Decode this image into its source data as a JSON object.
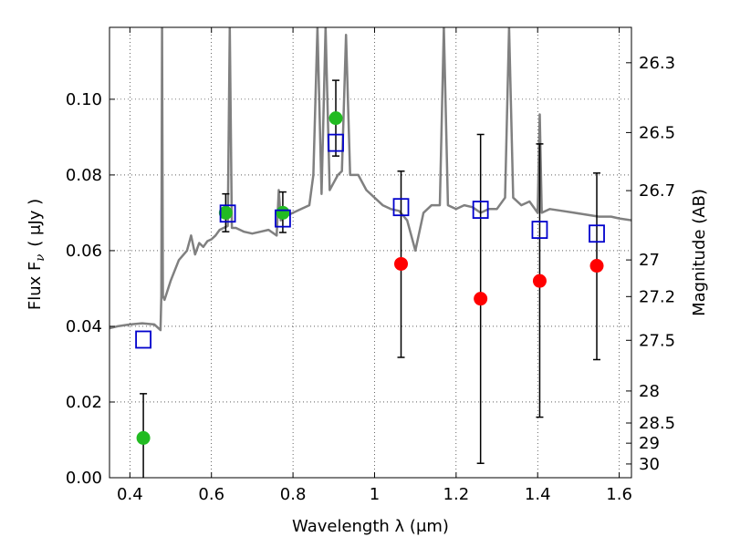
{
  "chart_data": {
    "type": "scatter",
    "xlabel": "Wavelength  λ (μm)",
    "ylabel": "Flux  F",
    "ylabel_sub": "ν",
    "ylabel_unit": "( μJy )",
    "y2label": "Magnitude (AB)",
    "xlim": [
      0.35,
      1.63
    ],
    "ylim": [
      0.0,
      0.119
    ],
    "grid": true,
    "x_ticks": [
      {
        "value": 0.4,
        "label": "0.4"
      },
      {
        "value": 0.6,
        "label": "0.6"
      },
      {
        "value": 0.8,
        "label": "0.8"
      },
      {
        "value": 1.0,
        "label": "1"
      },
      {
        "value": 1.2,
        "label": "1.2"
      },
      {
        "value": 1.4,
        "label": "1.4"
      },
      {
        "value": 1.6,
        "label": "1.6"
      }
    ],
    "y_ticks": [
      {
        "value": 0.0,
        "label": "0.00"
      },
      {
        "value": 0.02,
        "label": "0.02"
      },
      {
        "value": 0.04,
        "label": "0.04"
      },
      {
        "value": 0.06,
        "label": "0.06"
      },
      {
        "value": 0.08,
        "label": "0.08"
      },
      {
        "value": 0.1,
        "label": "0.10"
      }
    ],
    "y2_ticks": [
      {
        "value": 26.3,
        "label": "26.3"
      },
      {
        "value": 26.5,
        "label": "26.5"
      },
      {
        "value": 26.7,
        "label": "26.7"
      },
      {
        "value": 27.0,
        "label": "27"
      },
      {
        "value": 27.2,
        "label": "27.2"
      },
      {
        "value": 27.5,
        "label": "27.5"
      },
      {
        "value": 28.0,
        "label": "28"
      },
      {
        "value": 28.5,
        "label": "28.5"
      },
      {
        "value": 29.0,
        "label": "29"
      },
      {
        "value": 30.0,
        "label": "30"
      }
    ],
    "series": [
      {
        "kind": "line",
        "color": "#808080",
        "points": [
          [
            0.35,
            0.0395
          ],
          [
            0.37,
            0.04
          ],
          [
            0.4,
            0.0405
          ],
          [
            0.43,
            0.0408
          ],
          [
            0.46,
            0.0405
          ],
          [
            0.475,
            0.039
          ],
          [
            0.477,
            0.048
          ],
          [
            0.479,
            0.119
          ],
          [
            0.481,
            0.048
          ],
          [
            0.485,
            0.047
          ],
          [
            0.5,
            0.052
          ],
          [
            0.52,
            0.0575
          ],
          [
            0.54,
            0.06
          ],
          [
            0.55,
            0.064
          ],
          [
            0.56,
            0.059
          ],
          [
            0.57,
            0.062
          ],
          [
            0.58,
            0.061
          ],
          [
            0.59,
            0.0625
          ],
          [
            0.6,
            0.063
          ],
          [
            0.61,
            0.064
          ],
          [
            0.62,
            0.0655
          ],
          [
            0.63,
            0.066
          ],
          [
            0.64,
            0.0665
          ],
          [
            0.645,
            0.119
          ],
          [
            0.65,
            0.066
          ],
          [
            0.66,
            0.066
          ],
          [
            0.68,
            0.065
          ],
          [
            0.7,
            0.0645
          ],
          [
            0.72,
            0.065
          ],
          [
            0.74,
            0.0655
          ],
          [
            0.76,
            0.064
          ],
          [
            0.765,
            0.076
          ],
          [
            0.77,
            0.068
          ],
          [
            0.78,
            0.069
          ],
          [
            0.8,
            0.07
          ],
          [
            0.82,
            0.071
          ],
          [
            0.84,
            0.072
          ],
          [
            0.85,
            0.08
          ],
          [
            0.86,
            0.119
          ],
          [
            0.87,
            0.075
          ],
          [
            0.88,
            0.119
          ],
          [
            0.89,
            0.076
          ],
          [
            0.9,
            0.078
          ],
          [
            0.91,
            0.08
          ],
          [
            0.92,
            0.081
          ],
          [
            0.93,
            0.117
          ],
          [
            0.94,
            0.08
          ],
          [
            0.96,
            0.08
          ],
          [
            0.98,
            0.076
          ],
          [
            1.0,
            0.074
          ],
          [
            1.02,
            0.072
          ],
          [
            1.04,
            0.071
          ],
          [
            1.06,
            0.0705
          ],
          [
            1.08,
            0.068
          ],
          [
            1.1,
            0.06
          ],
          [
            1.12,
            0.07
          ],
          [
            1.14,
            0.072
          ],
          [
            1.16,
            0.072
          ],
          [
            1.17,
            0.119
          ],
          [
            1.18,
            0.072
          ],
          [
            1.2,
            0.071
          ],
          [
            1.22,
            0.072
          ],
          [
            1.24,
            0.0715
          ],
          [
            1.26,
            0.07
          ],
          [
            1.28,
            0.071
          ],
          [
            1.3,
            0.071
          ],
          [
            1.32,
            0.074
          ],
          [
            1.33,
            0.119
          ],
          [
            1.34,
            0.074
          ],
          [
            1.36,
            0.072
          ],
          [
            1.38,
            0.073
          ],
          [
            1.4,
            0.07
          ],
          [
            1.405,
            0.096
          ],
          [
            1.41,
            0.07
          ],
          [
            1.43,
            0.071
          ],
          [
            1.46,
            0.0705
          ],
          [
            1.49,
            0.07
          ],
          [
            1.52,
            0.0695
          ],
          [
            1.55,
            0.069
          ],
          [
            1.58,
            0.069
          ],
          [
            1.6,
            0.0685
          ],
          [
            1.63,
            0.068
          ]
        ]
      },
      {
        "kind": "points",
        "marker": "circle",
        "color": "#22bb22",
        "points": [
          {
            "x": 0.433,
            "y": 0.0105,
            "ylo": 0.0,
            "yhi": 0.0222
          },
          {
            "x": 0.635,
            "y": 0.07,
            "ylo": 0.065,
            "yhi": 0.075
          },
          {
            "x": 0.775,
            "y": 0.07,
            "ylo": 0.0648,
            "yhi": 0.0755
          },
          {
            "x": 0.905,
            "y": 0.095,
            "ylo": 0.085,
            "yhi": 0.105
          }
        ]
      },
      {
        "kind": "points",
        "marker": "circle",
        "color": "#ff0000",
        "points": [
          {
            "x": 1.065,
            "y": 0.0565,
            "ylo": 0.0318,
            "yhi": 0.081
          },
          {
            "x": 1.26,
            "y": 0.0473,
            "ylo": 0.0038,
            "yhi": 0.0907
          },
          {
            "x": 1.405,
            "y": 0.052,
            "ylo": 0.016,
            "yhi": 0.0882
          },
          {
            "x": 1.545,
            "y": 0.056,
            "ylo": 0.0312,
            "yhi": 0.0805
          }
        ]
      },
      {
        "kind": "points",
        "marker": "square",
        "color": "#0000cc",
        "points": [
          {
            "x": 0.433,
            "y": 0.0365
          },
          {
            "x": 0.64,
            "y": 0.0698
          },
          {
            "x": 0.775,
            "y": 0.0685
          },
          {
            "x": 0.905,
            "y": 0.0885
          },
          {
            "x": 1.065,
            "y": 0.0715
          },
          {
            "x": 1.26,
            "y": 0.0708
          },
          {
            "x": 1.405,
            "y": 0.0655
          },
          {
            "x": 1.545,
            "y": 0.0645
          }
        ]
      }
    ]
  }
}
